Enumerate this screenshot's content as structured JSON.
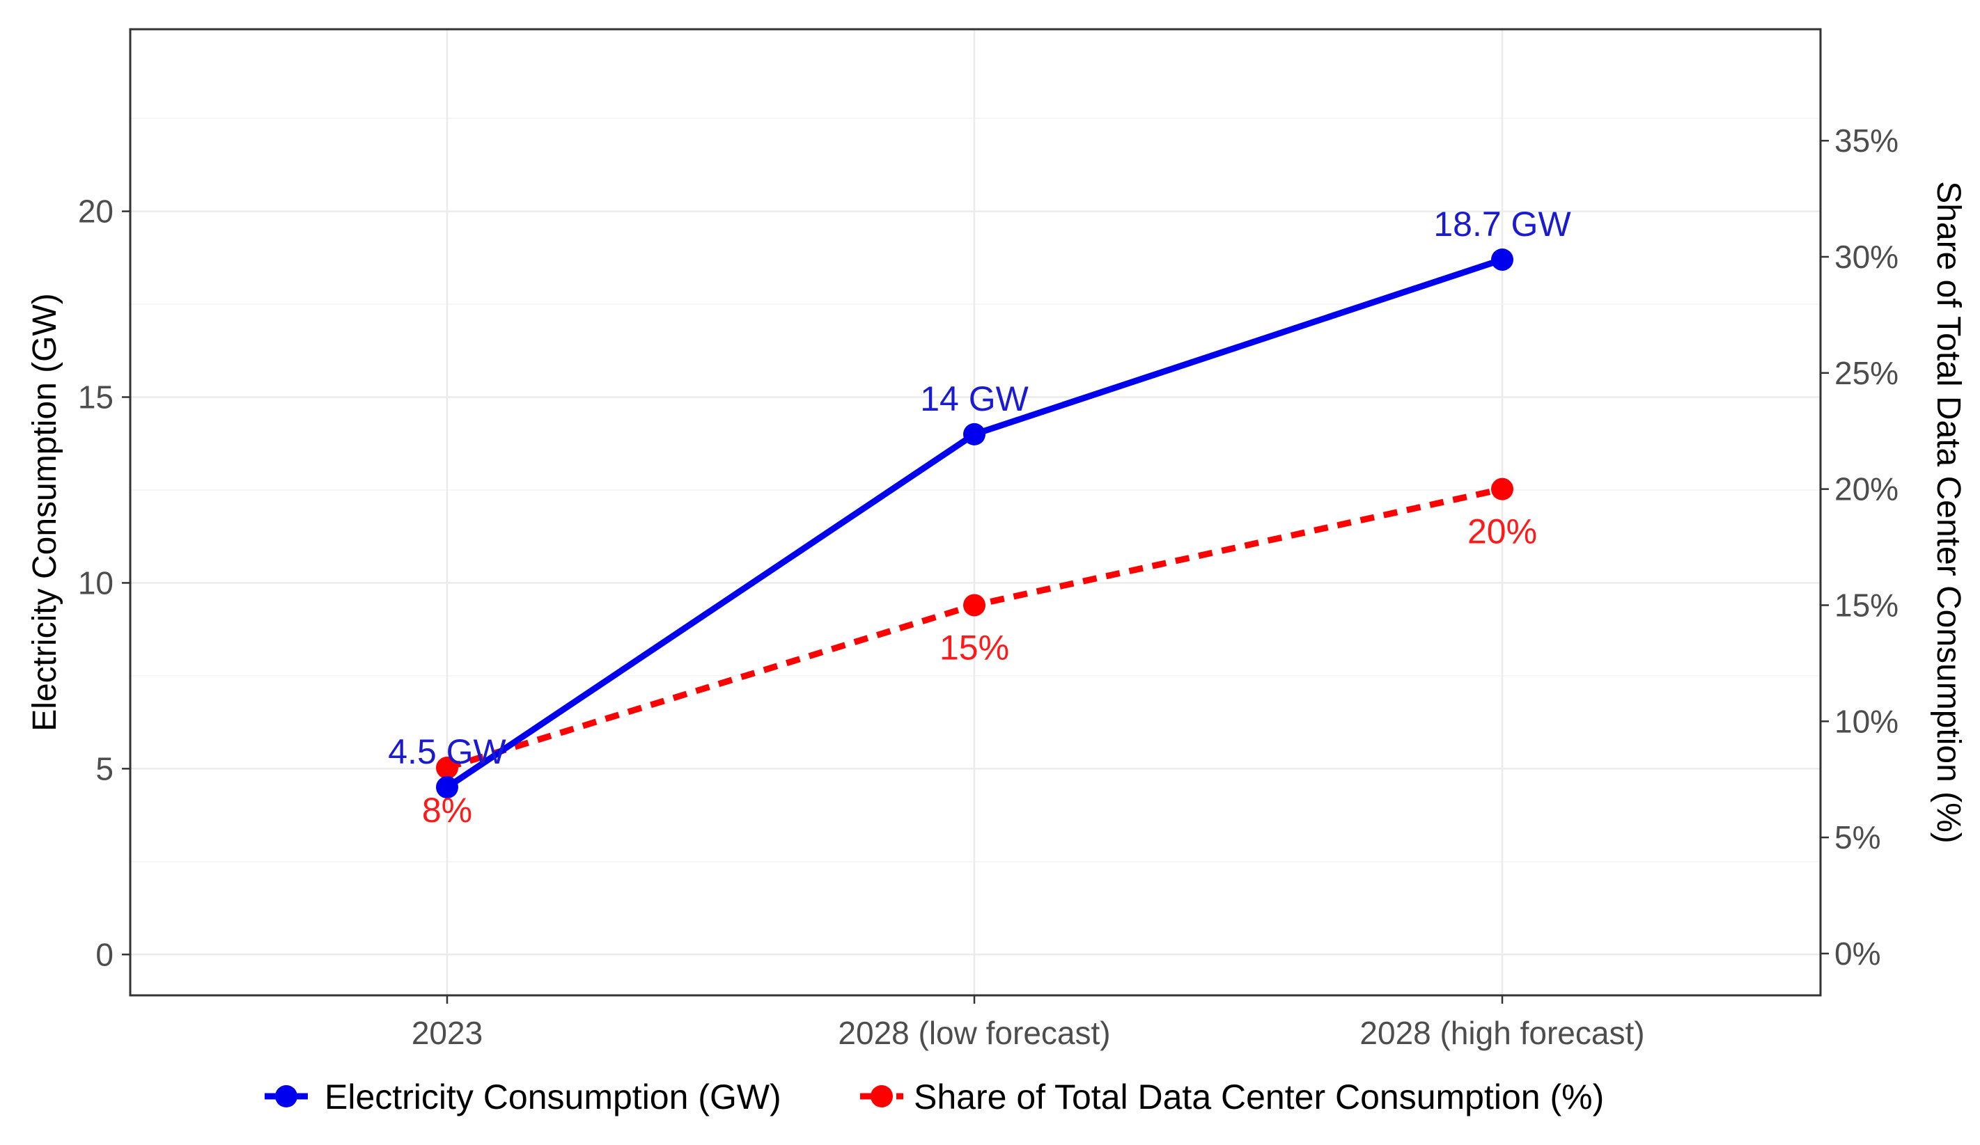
{
  "chart_data": {
    "type": "line",
    "categories": [
      "2023",
      "2028 (low forecast)",
      "2028 (high forecast)"
    ],
    "title": "",
    "xlabel": "",
    "ylabel": "Electricity Consumption (GW)",
    "y2label": "Share of Total Data Center Consumption (%)",
    "ylim": [
      -1.1,
      24.9
    ],
    "y2lim": [
      -1.8,
      39.8
    ],
    "yticks": [
      0,
      5,
      10,
      15,
      20
    ],
    "ytick_labels": [
      "0",
      "5",
      "10",
      "15",
      "20"
    ],
    "y2ticks": [
      0,
      5,
      10,
      15,
      20,
      25,
      30,
      35
    ],
    "y2tick_labels": [
      "0%",
      "5%",
      "10%",
      "15%",
      "20%",
      "25%",
      "30%",
      "35%"
    ],
    "grid": true,
    "legend_position": "bottom",
    "series": [
      {
        "name": "Electricity Consumption (GW)",
        "axis": "left",
        "style": "solid",
        "color": "#0000ee",
        "label_color": "#1a1ad0",
        "values": [
          4.5,
          14,
          18.7
        ],
        "labels": [
          "4.5 GW",
          "14 GW",
          "18.7 GW"
        ]
      },
      {
        "name": "Share of Total Data Center Consumption (%)",
        "axis": "right",
        "style": "dashed",
        "color": "#ff0000",
        "label_color": "#ff1a1a",
        "values": [
          8,
          15,
          20
        ],
        "labels": [
          "8%",
          "15%",
          "20%"
        ]
      }
    ]
  }
}
